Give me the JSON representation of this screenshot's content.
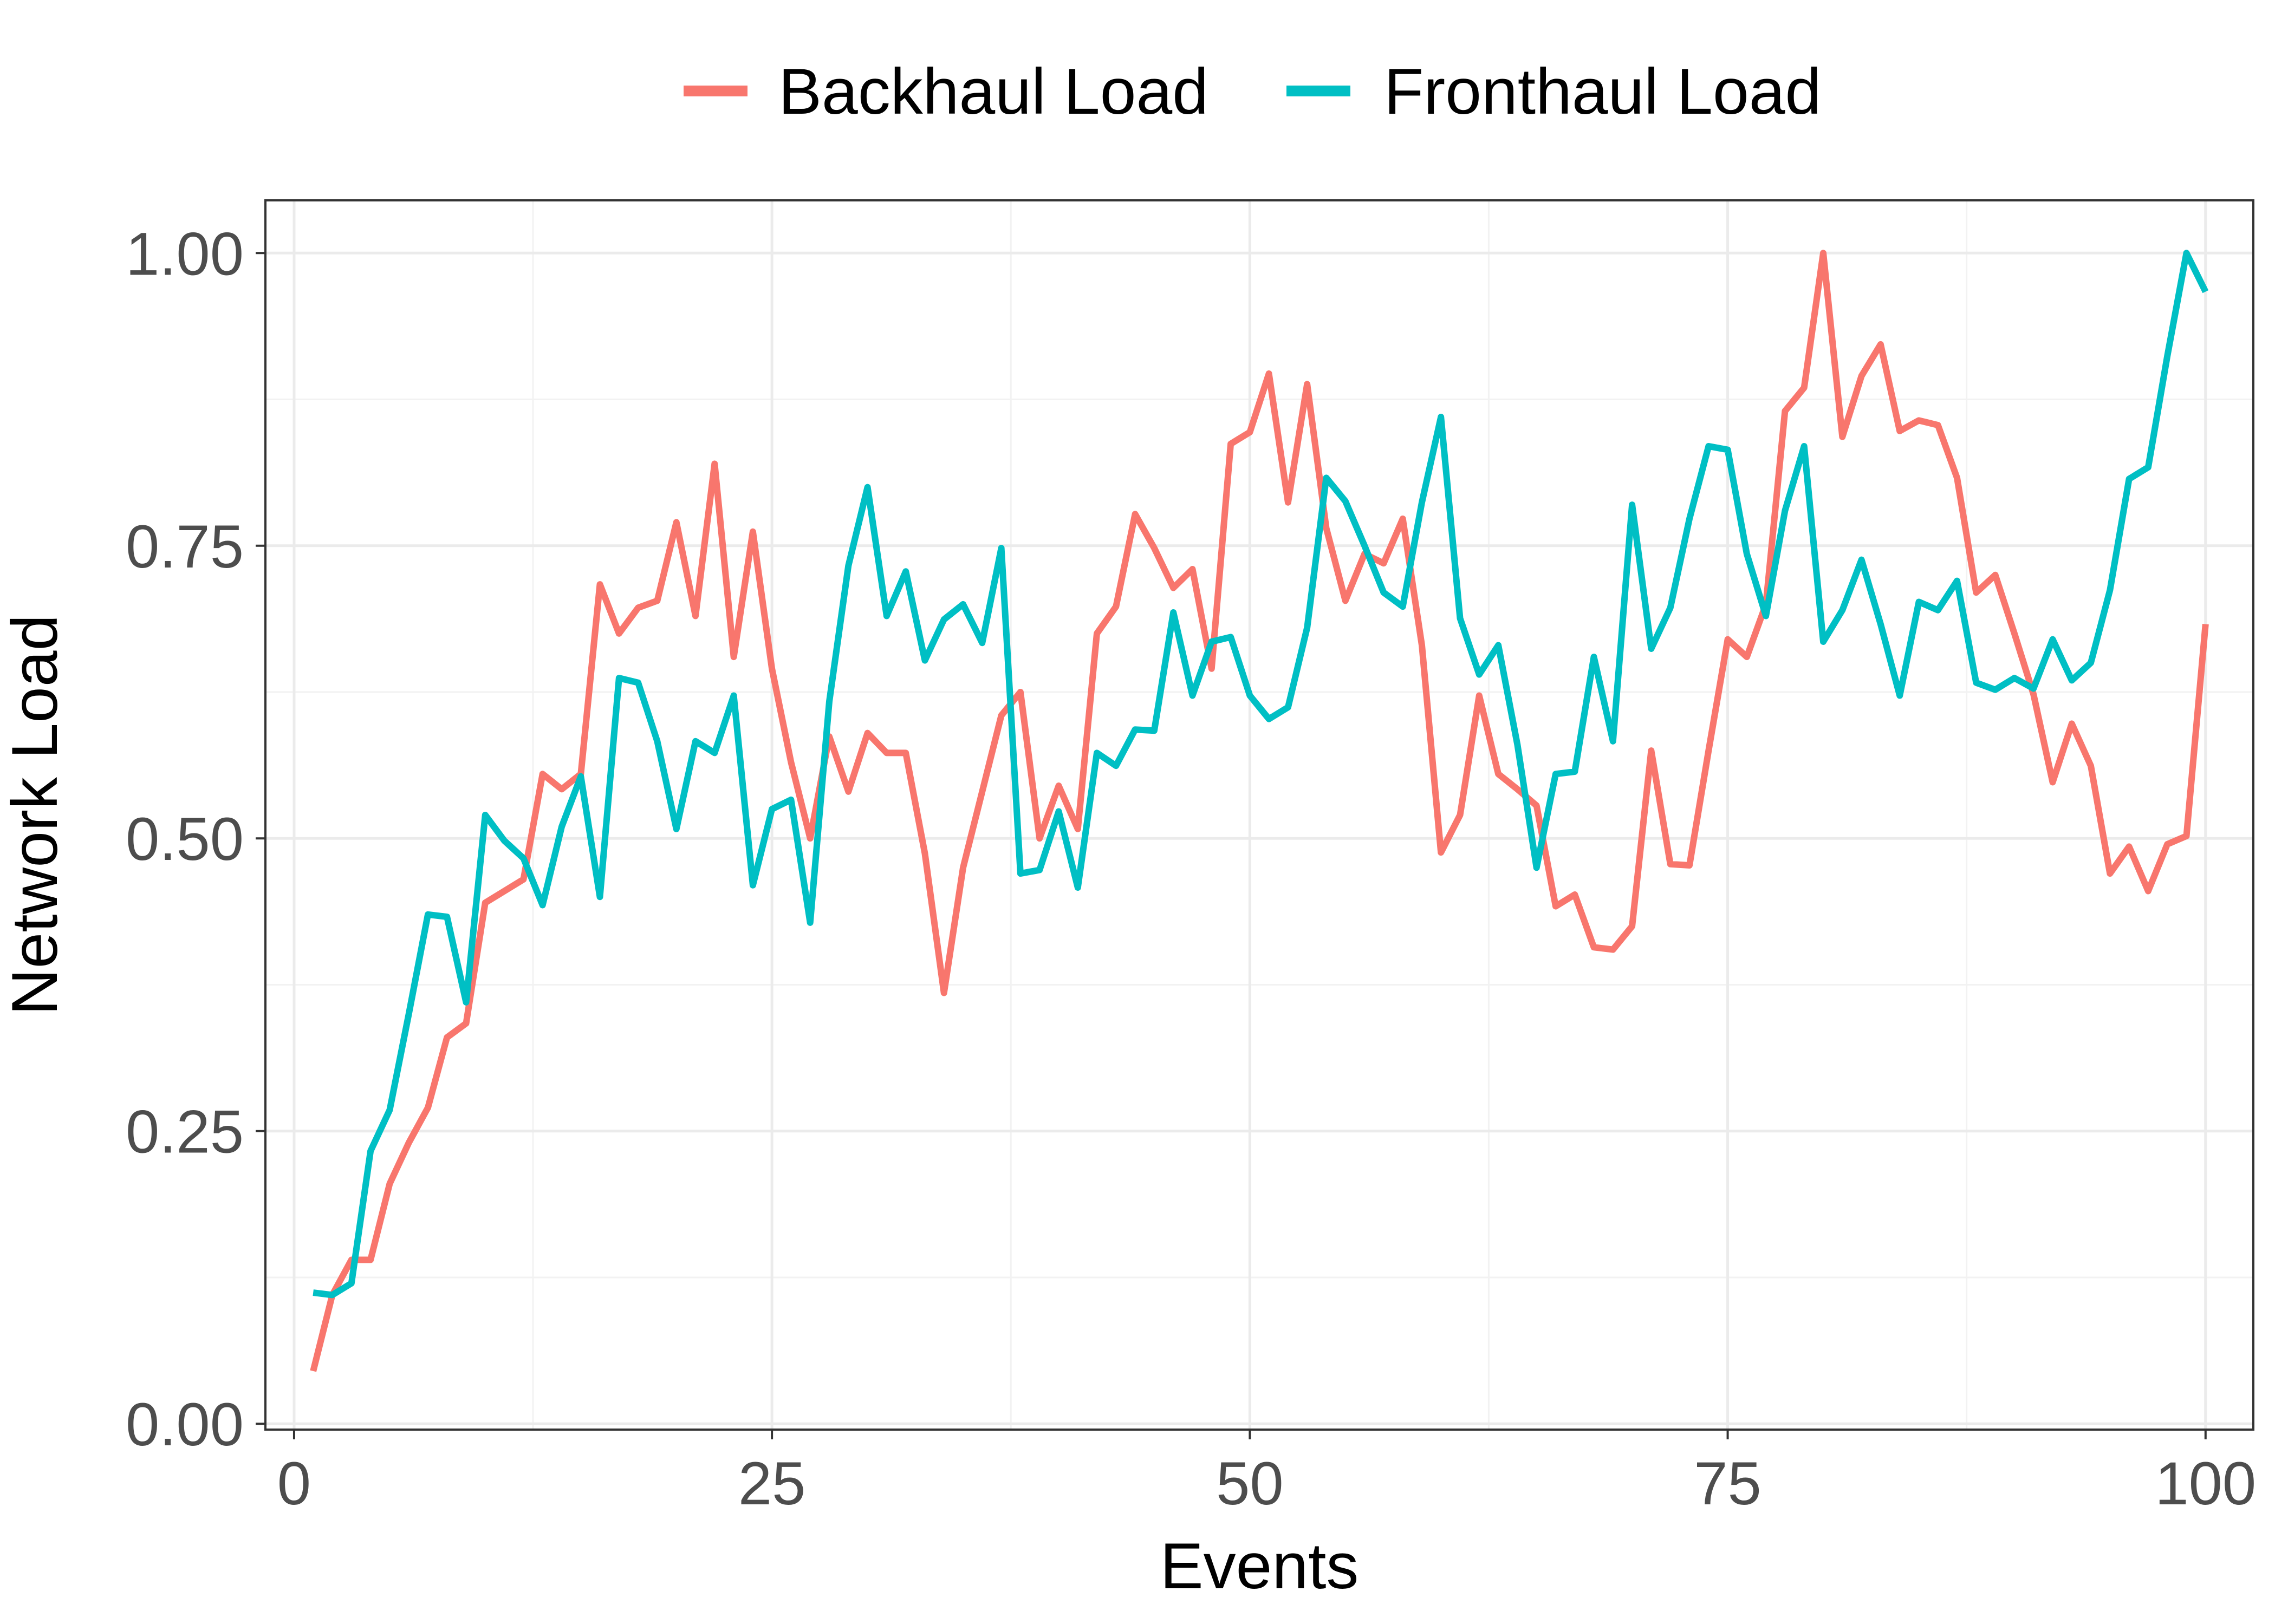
{
  "chart_data": {
    "type": "line",
    "xlabel": "Events",
    "ylabel": "Network Load",
    "xlim": [
      -1.5,
      102.5
    ],
    "ylim": [
      -0.005,
      1.045
    ],
    "x_ticks": [
      0,
      25,
      50,
      75,
      100
    ],
    "x_tick_labels": [
      "0",
      "25",
      "50",
      "75",
      "100"
    ],
    "y_ticks": [
      0,
      0.25,
      0.5,
      0.75,
      1.0
    ],
    "y_tick_labels": [
      "0.00",
      "0.25",
      "0.50",
      "0.75",
      "1.00"
    ],
    "grid": true,
    "legend_position": "top",
    "x": [
      1,
      2,
      3,
      4,
      5,
      6,
      7,
      8,
      9,
      10,
      11,
      12,
      13,
      14,
      15,
      16,
      17,
      18,
      19,
      20,
      21,
      22,
      23,
      24,
      25,
      26,
      27,
      28,
      29,
      30,
      31,
      32,
      33,
      34,
      35,
      36,
      37,
      38,
      39,
      40,
      41,
      42,
      43,
      44,
      45,
      46,
      47,
      48,
      49,
      50,
      51,
      52,
      53,
      54,
      55,
      56,
      57,
      58,
      59,
      60,
      61,
      62,
      63,
      64,
      65,
      66,
      67,
      68,
      69,
      70,
      71,
      72,
      73,
      74,
      75,
      76,
      77,
      78,
      79,
      80,
      81,
      82,
      83,
      84,
      85,
      86,
      87,
      88,
      89,
      90,
      91,
      92,
      93,
      94,
      95,
      96,
      97,
      98,
      99,
      100
    ],
    "series": [
      {
        "name": "Backhaul Load",
        "color": "#F8766D",
        "values": [
          0.045,
          0.11,
          0.14,
          0.14,
          0.205,
          0.24,
          0.27,
          0.33,
          0.342,
          0.445,
          0.455,
          0.465,
          0.555,
          0.542,
          0.555,
          0.717,
          0.675,
          0.697,
          0.703,
          0.77,
          0.69,
          0.82,
          0.655,
          0.762,
          0.645,
          0.565,
          0.5,
          0.587,
          0.54,
          0.59,
          0.573,
          0.573,
          0.487,
          0.368,
          0.475,
          0.54,
          0.605,
          0.625,
          0.5,
          0.545,
          0.508,
          0.675,
          0.698,
          0.777,
          0.748,
          0.714,
          0.73,
          0.645,
          0.837,
          0.847,
          0.897,
          0.787,
          0.888,
          0.765,
          0.703,
          0.743,
          0.735,
          0.773,
          0.665,
          0.488,
          0.52,
          0.622,
          0.555,
          0.542,
          0.528,
          0.442,
          0.452,
          0.407,
          0.405,
          0.425,
          0.575,
          0.478,
          0.477,
          0.575,
          0.67,
          0.655,
          0.7,
          0.865,
          0.885,
          1.0,
          0.843,
          0.895,
          0.922,
          0.848,
          0.857,
          0.853,
          0.808,
          0.71,
          0.725,
          0.675,
          0.623,
          0.548,
          0.598,
          0.562,
          0.47,
          0.493,
          0.455,
          0.495,
          0.502,
          0.683
        ]
      },
      {
        "name": "Fronthaul Load",
        "color": "#00BFC4",
        "values": [
          0.112,
          0.11,
          0.12,
          0.233,
          0.268,
          0.35,
          0.435,
          0.433,
          0.36,
          0.52,
          0.498,
          0.483,
          0.443,
          0.51,
          0.553,
          0.45,
          0.637,
          0.633,
          0.583,
          0.508,
          0.583,
          0.573,
          0.622,
          0.46,
          0.525,
          0.533,
          0.428,
          0.617,
          0.733,
          0.8,
          0.69,
          0.728,
          0.652,
          0.687,
          0.7,
          0.667,
          0.748,
          0.47,
          0.473,
          0.523,
          0.458,
          0.573,
          0.562,
          0.593,
          0.592,
          0.693,
          0.622,
          0.668,
          0.672,
          0.622,
          0.602,
          0.612,
          0.68,
          0.808,
          0.788,
          0.75,
          0.71,
          0.698,
          0.787,
          0.86,
          0.688,
          0.64,
          0.665,
          0.58,
          0.475,
          0.555,
          0.557,
          0.655,
          0.583,
          0.785,
          0.662,
          0.697,
          0.773,
          0.835,
          0.832,
          0.743,
          0.69,
          0.78,
          0.835,
          0.668,
          0.695,
          0.738,
          0.683,
          0.622,
          0.702,
          0.695,
          0.72,
          0.633,
          0.627,
          0.637,
          0.628,
          0.67,
          0.635,
          0.65,
          0.712,
          0.807,
          0.817,
          0.912,
          1.0,
          0.967
        ]
      }
    ]
  }
}
